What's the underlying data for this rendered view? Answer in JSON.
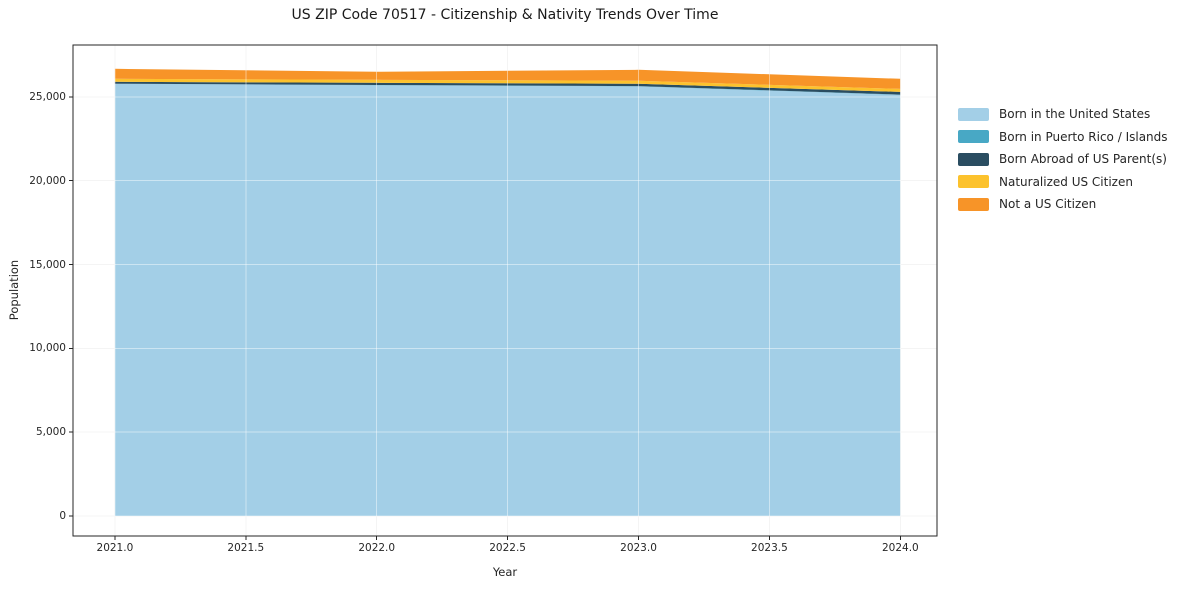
{
  "chart_data": {
    "type": "area",
    "stacked": true,
    "title": "US ZIP Code 70517 - Citizenship & Nativity Trends Over Time",
    "xlabel": "Year",
    "ylabel": "Population",
    "x": [
      2021,
      2022,
      2023,
      2024
    ],
    "series": [
      {
        "name": "Born in the United States",
        "color": "#a3cfe7",
        "values": [
          25780,
          25700,
          25630,
          25120
        ]
      },
      {
        "name": "Born in Puerto Rico / Islands",
        "color": "#48a8c5",
        "values": [
          10,
          10,
          15,
          20
        ]
      },
      {
        "name": "Born Abroad of US Parent(s)",
        "color": "#2a4d61",
        "values": [
          110,
          130,
          140,
          160
        ]
      },
      {
        "name": "Naturalized US Citizen",
        "color": "#fcc22d",
        "values": [
          180,
          180,
          180,
          180
        ]
      },
      {
        "name": "Not a US Citizen",
        "color": "#f79428",
        "values": [
          600,
          480,
          655,
          600
        ]
      }
    ],
    "x_ticks": {
      "values": [
        2021.0,
        2021.5,
        2022.0,
        2022.5,
        2023.0,
        2023.5,
        2024.0
      ],
      "labels": [
        "2021.0",
        "2021.5",
        "2022.0",
        "2022.5",
        "2023.0",
        "2023.5",
        "2024.0"
      ]
    },
    "y_ticks": {
      "values": [
        0,
        5000,
        10000,
        15000,
        20000,
        25000
      ],
      "labels": [
        "0",
        "5,000",
        "10,000",
        "15,000",
        "20,000",
        "25,000"
      ]
    },
    "xlim": [
      2020.84,
      2024.14
    ],
    "ylim": [
      -1193,
      28097
    ],
    "grid": true,
    "legend_position": "center right",
    "colors": {
      "spine": "#262626",
      "tick_text": "#262626",
      "grid_under": "#ebebeb",
      "grid_over_opacity": 0.45,
      "background": "#ffffff"
    }
  }
}
